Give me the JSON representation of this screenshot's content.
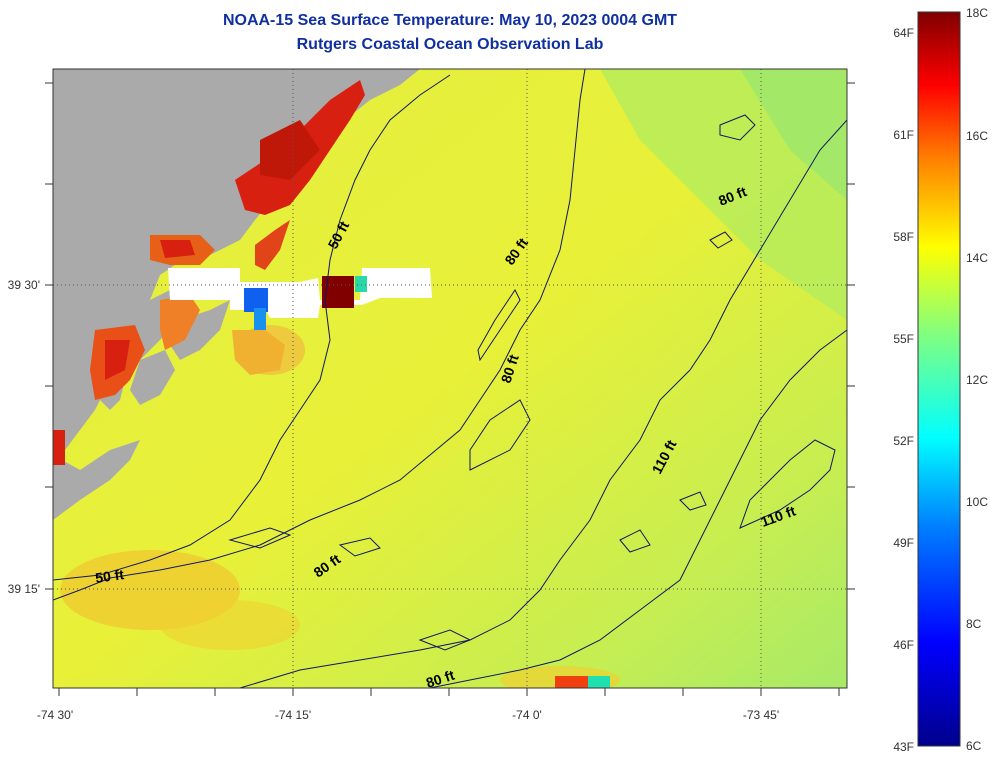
{
  "title_line1": "NOAA-15 Sea Surface Temperature:  May 10, 2023 0004 GMT",
  "title_line2": "Rutgers Coastal Ocean Observation Lab",
  "lon_labels": [
    "-74 30'",
    "-74 15'",
    "-74 0'",
    "-73 45'"
  ],
  "lat_labels": [
    "39 30'",
    "39 15'"
  ],
  "colorbar": {
    "f_labels": [
      "64F",
      "61F",
      "58F",
      "55F",
      "52F",
      "49F",
      "46F",
      "43F"
    ],
    "c_labels": [
      "18C",
      "16C",
      "14C",
      "12C",
      "10C",
      "8C",
      "6C"
    ]
  },
  "contour_labels": [
    {
      "text": "50 ft"
    },
    {
      "text": "50 ft"
    },
    {
      "text": "80 ft"
    },
    {
      "text": "80 ft"
    },
    {
      "text": "80 ft"
    },
    {
      "text": "80 ft"
    },
    {
      "text": "80 ft"
    },
    {
      "text": "110 ft"
    },
    {
      "text": "110 ft"
    }
  ],
  "colors": {
    "land": "#aaaaaa",
    "sst_main": "#e8f040",
    "sst_cool": "#b8ec58",
    "sst_warm": "#f0d030",
    "sst_hot": "#d82010",
    "contour": "#101860",
    "title": "#1030a0"
  }
}
